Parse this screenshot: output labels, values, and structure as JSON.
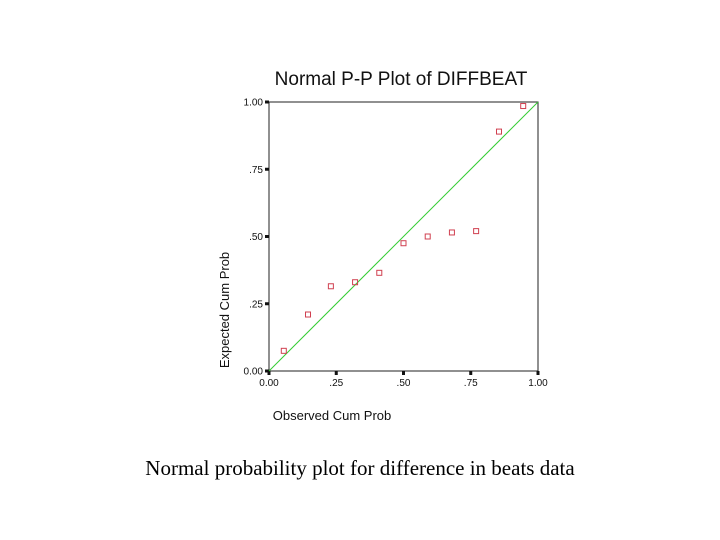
{
  "caption": "Normal probability plot for difference in beats data",
  "chart_data": {
    "type": "scatter",
    "title": "Normal P-P Plot of DIFFBEAT",
    "xlabel": "Observed Cum Prob",
    "ylabel": "Expected Cum Prob",
    "xlim": [
      0,
      1
    ],
    "ylim": [
      0,
      1
    ],
    "x_ticks": [
      {
        "value": 0,
        "label": "0.00"
      },
      {
        "value": 0.25,
        "label": ".25"
      },
      {
        "value": 0.5,
        "label": ".50"
      },
      {
        "value": 0.75,
        "label": ".75"
      },
      {
        "value": 1,
        "label": "1.00"
      }
    ],
    "y_ticks": [
      {
        "value": 0,
        "label": "0.00"
      },
      {
        "value": 0.25,
        "label": ".25"
      },
      {
        "value": 0.5,
        "label": ".50"
      },
      {
        "value": 0.75,
        "label": ".75"
      },
      {
        "value": 1,
        "label": "1.00"
      }
    ],
    "grid": false,
    "reference_line": {
      "from": [
        0,
        0
      ],
      "to": [
        1,
        1
      ],
      "color": "#33cc33"
    },
    "marker": {
      "shape": "open-square",
      "color": "#d04050"
    },
    "points": [
      {
        "x": 0.055,
        "y": 0.075
      },
      {
        "x": 0.145,
        "y": 0.21
      },
      {
        "x": 0.23,
        "y": 0.315
      },
      {
        "x": 0.32,
        "y": 0.33
      },
      {
        "x": 0.41,
        "y": 0.365
      },
      {
        "x": 0.5,
        "y": 0.475
      },
      {
        "x": 0.59,
        "y": 0.5
      },
      {
        "x": 0.68,
        "y": 0.515
      },
      {
        "x": 0.77,
        "y": 0.52
      },
      {
        "x": 0.855,
        "y": 0.89
      },
      {
        "x": 0.945,
        "y": 0.985
      }
    ]
  }
}
